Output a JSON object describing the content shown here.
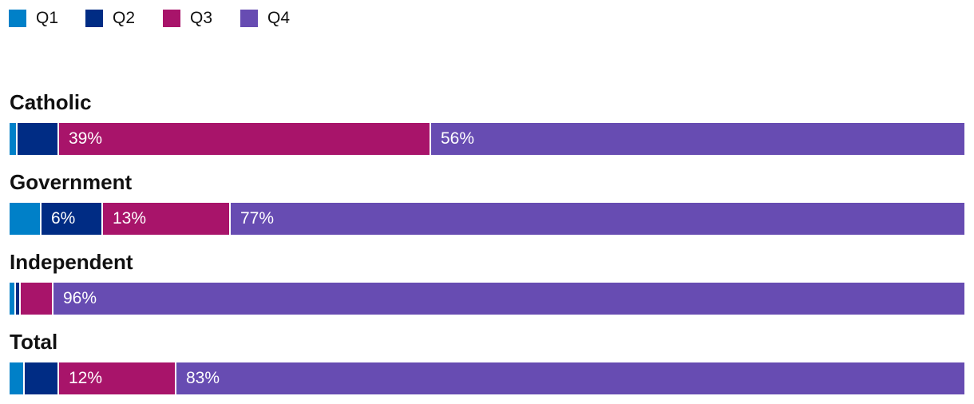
{
  "chart_data": {
    "type": "bar",
    "orientation": "horizontal",
    "stacked": true,
    "normalized": true,
    "legend_position": "top-left",
    "categories": [
      "Catholic",
      "Government",
      "Independent",
      "Total"
    ],
    "series": [
      {
        "name": "Q1",
        "color": "#0080c8",
        "values": [
          0.7,
          3.2,
          0.5,
          1.4
        ],
        "labels": [
          "",
          "",
          "",
          ""
        ]
      },
      {
        "name": "Q2",
        "color": "#002c84",
        "values": [
          4.3,
          6.4,
          0.5,
          3.6
        ],
        "labels": [
          "",
          "6%",
          "",
          ""
        ]
      },
      {
        "name": "Q3",
        "color": "#a8146a",
        "values": [
          39,
          13.4,
          3.4,
          12.3
        ],
        "labels": [
          "39%",
          "13%",
          "",
          "12%"
        ]
      },
      {
        "name": "Q4",
        "color": "#674cb2",
        "values": [
          56,
          77,
          95.6,
          82.7
        ],
        "labels": [
          "56%",
          "77%",
          "96%",
          "83%"
        ]
      }
    ]
  }
}
